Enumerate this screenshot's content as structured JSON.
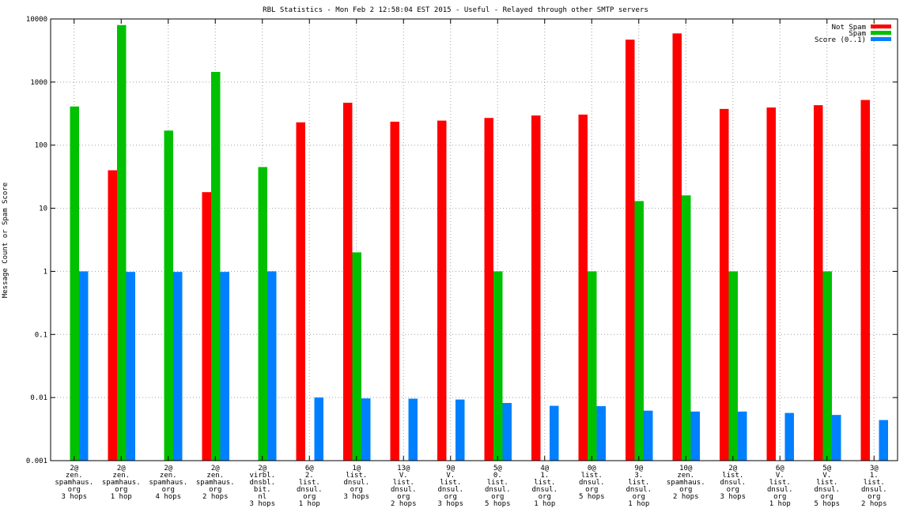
{
  "chart_data": {
    "type": "bar",
    "title": "RBL Statistics - Mon Feb  2 12:58:04 EST 2015 - Useful - Relayed through other SMTP servers",
    "xlabel": "",
    "ylabel": "Message Count or Spam Score",
    "yscale": "log",
    "ylim": [
      0.001,
      10000
    ],
    "yticks": [
      {
        "value": 0.001,
        "label": "0.001"
      },
      {
        "value": 0.01,
        "label": "0.01"
      },
      {
        "value": 0.1,
        "label": "0.1"
      },
      {
        "value": 1,
        "label": "1"
      },
      {
        "value": 10,
        "label": "10"
      },
      {
        "value": 100,
        "label": "100"
      },
      {
        "value": 1000,
        "label": "1000"
      },
      {
        "value": 10000,
        "label": "10000"
      }
    ],
    "grid": true,
    "legend_position": "top-right",
    "categories": [
      [
        "2@",
        "zen.",
        "spamhaus.",
        "org",
        "3 hops"
      ],
      [
        "2@",
        "zen.",
        "spamhaus.",
        "org",
        "1 hop"
      ],
      [
        "2@",
        "zen.",
        "spamhaus.",
        "org",
        "4 hops"
      ],
      [
        "2@",
        "zen.",
        "spamhaus.",
        "org",
        "2 hops"
      ],
      [
        "2@",
        "virbl.",
        "dnsbl.",
        "bit.",
        "nl",
        "3 hops"
      ],
      [
        "6@",
        "2.",
        "list.",
        "dnsul.",
        "org",
        "1 hop"
      ],
      [
        "1@",
        "list.",
        "dnsul.",
        "org",
        "3 hops"
      ],
      [
        "13@",
        "V.",
        "list.",
        "dnsul.",
        "org",
        "2 hops"
      ],
      [
        "9@",
        "V.",
        "list.",
        "dnsul.",
        "org",
        "3 hops"
      ],
      [
        "5@",
        "0.",
        "list.",
        "dnsul.",
        "org",
        "5 hops"
      ],
      [
        "4@",
        "1.",
        "list.",
        "dnsul.",
        "org",
        "1 hop"
      ],
      [
        "0@",
        "list.",
        "dnsul.",
        "org",
        "5 hops"
      ],
      [
        "9@",
        "3.",
        "list.",
        "dnsul.",
        "org",
        "1 hop"
      ],
      [
        "10@",
        "zen.",
        "spamhaus.",
        "org",
        "2 hops"
      ],
      [
        "2@",
        "list.",
        "dnsul.",
        "org",
        "3 hops"
      ],
      [
        "6@",
        "V.",
        "list.",
        "dnsul.",
        "org",
        "1 hop"
      ],
      [
        "5@",
        "V.",
        "list.",
        "dnsul.",
        "org",
        "5 hops"
      ],
      [
        "3@",
        "1.",
        "list.",
        "dnsul.",
        "org",
        "2 hops"
      ]
    ],
    "series": [
      {
        "name": "Not Spam",
        "color": "#ff0000",
        "values": [
          null,
          40,
          null,
          18,
          null,
          230,
          470,
          235,
          245,
          270,
          295,
          305,
          4700,
          5900,
          375,
          395,
          430,
          520
        ]
      },
      {
        "name": "Spam",
        "color": "#00c000",
        "values": [
          410,
          8000,
          170,
          1450,
          45,
          null,
          2,
          null,
          null,
          1,
          null,
          1,
          13,
          16,
          1,
          null,
          1,
          null
        ]
      },
      {
        "name": "Score (0..1)",
        "color": "#0080ff",
        "values": [
          1,
          0.98,
          0.98,
          0.98,
          1,
          0.01,
          0.0097,
          0.0096,
          0.0093,
          0.0082,
          0.0074,
          0.0073,
          0.0062,
          0.006,
          0.006,
          0.0057,
          0.0053,
          0.0044
        ]
      }
    ]
  }
}
